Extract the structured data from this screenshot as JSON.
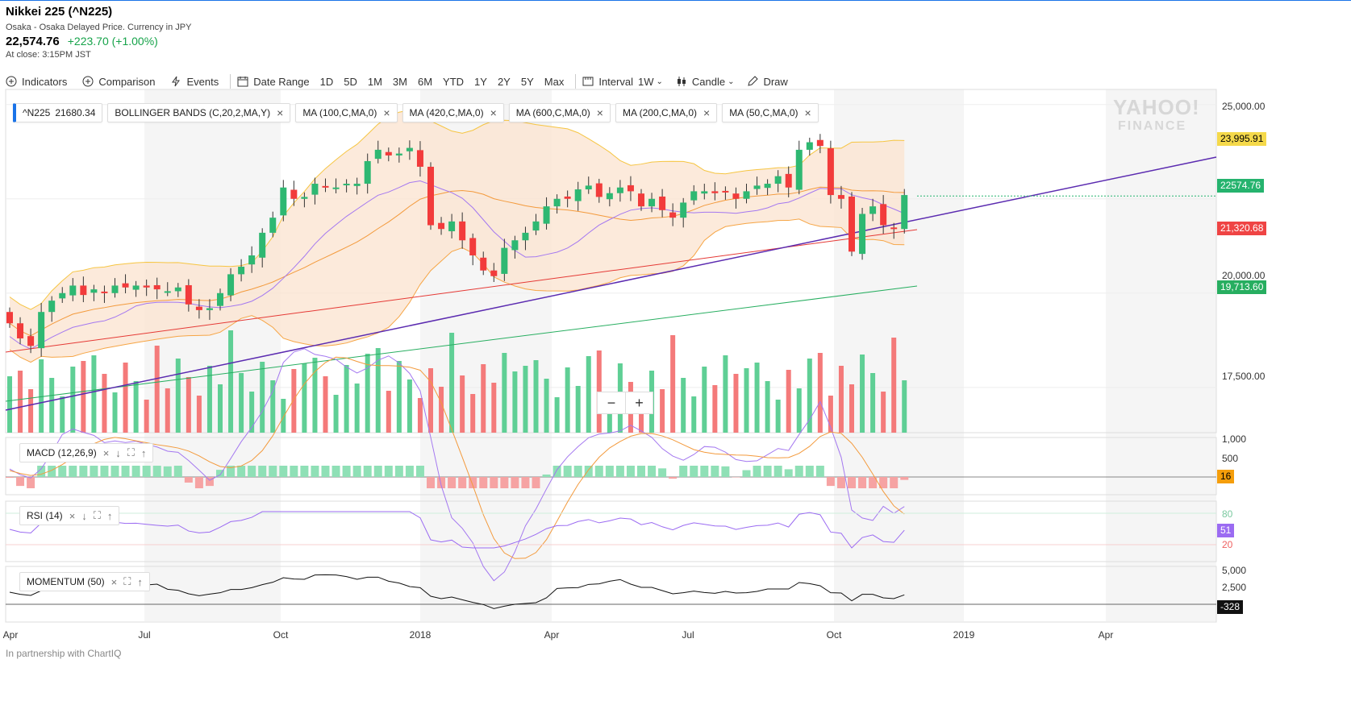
{
  "header": {
    "title": "Nikkei 225 (^N225)",
    "exchange": "Osaka - Osaka Delayed Price. Currency in JPY",
    "price": "22,574.76",
    "change": "+223.70 (+1.00%)",
    "close_time": "At close: 3:15PM JST"
  },
  "toolbar": {
    "indicators": "Indicators",
    "comparison": "Comparison",
    "events": "Events",
    "date_range": "Date Range",
    "ranges": [
      "1D",
      "5D",
      "1M",
      "3M",
      "6M",
      "YTD",
      "1Y",
      "2Y",
      "5Y",
      "Max"
    ],
    "interval_label": "Interval",
    "interval_value": "1W",
    "chart_type": "Candle",
    "draw": "Draw"
  },
  "studies": {
    "main_symbol": "^N225",
    "main_value": "21680.34",
    "items": [
      "BOLLINGER BANDS (C,20,2,MA,Y)",
      "MA (100,C,MA,0)",
      "MA (420,C,MA,0)",
      "MA (600,C,MA,0)",
      "MA (200,C,MA,0)",
      "MA (50,C,MA,0)"
    ]
  },
  "price_axis": {
    "ticks": [
      "25,000.00",
      "20,000.00",
      "17,500.00"
    ],
    "tags": {
      "bb_upper": "23,995.91",
      "last": "22574.76",
      "ma_red": "21,320.68",
      "ma_green": "19,713.60"
    }
  },
  "time_axis": [
    "Apr",
    "Jul",
    "Oct",
    "2018",
    "Apr",
    "Jul",
    "Oct",
    "2019",
    "Apr"
  ],
  "macd": {
    "label": "MACD (12,26,9)",
    "ticks": [
      "1,000",
      "500"
    ],
    "value": "16"
  },
  "rsi": {
    "label": "RSI (14)",
    "ticks": [
      "80",
      "20"
    ],
    "value": "51"
  },
  "momentum": {
    "label": "MOMENTUM (50)",
    "ticks": [
      "5,000",
      "2,500"
    ],
    "value": "-328"
  },
  "footer": "In partnership with ChartIQ",
  "watermark": {
    "line1": "YAHOO!",
    "line2": "FINANCE"
  },
  "colors": {
    "up": "#2eb872",
    "down": "#f23b3b",
    "band": "#fbe3cf",
    "accent": "#1a73e8"
  },
  "chart_data": {
    "type": "candlestick",
    "interval": "1W",
    "title": "Nikkei 225 (^N225)",
    "ylim": [
      16300,
      25400
    ],
    "closes": [
      19200,
      18800,
      18600,
      19500,
      19800,
      20000,
      20200,
      19950,
      20100,
      20000,
      20200,
      20150,
      20200,
      20150,
      20100,
      20050,
      20150,
      19700,
      19550,
      19600,
      20000,
      20500,
      20700,
      21000,
      21600,
      22000,
      22800,
      22500,
      22550,
      22900,
      22800,
      22800,
      22900,
      22900,
      23500,
      23800,
      23650,
      23700,
      23850,
      23350,
      21800,
      21700,
      21900,
      21400,
      21000,
      20600,
      20450,
      21200,
      21400,
      21600,
      21900,
      22300,
      22500,
      22500,
      22750,
      22850,
      22550,
      22650,
      22800,
      22700,
      22300,
      22500,
      22200,
      22000,
      22400,
      22700,
      22700,
      22650,
      22700,
      22500,
      22700,
      22850,
      22900,
      23100,
      22800,
      23800,
      24000,
      23900,
      22600,
      22500,
      21100,
      22100,
      22300,
      21800,
      21700,
      22600
    ],
    "macd_panel": "MACD (12,26,9)",
    "rsi_panel": "RSI (14)",
    "momentum_panel": "MOMENTUM (50)"
  }
}
